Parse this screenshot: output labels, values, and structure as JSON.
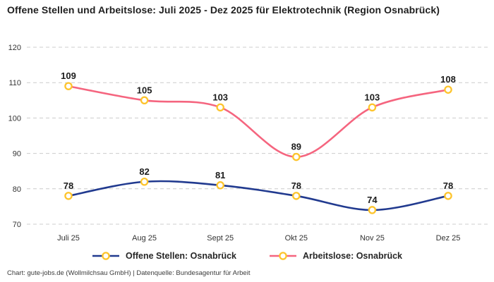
{
  "header": {
    "title": "Offene Stellen und Arbeitslose: Juli 2025 - Dez 2025 für Elektrotechnik (Region Osnabrück)"
  },
  "footer": {
    "credit": "Chart: gute-jobs.de (Wollmilchsau GmbH) | Datenquelle: Bundesagentur für Arbeit"
  },
  "colors": {
    "offene_stellen": "#213a8f",
    "arbeitslose": "#f5657f",
    "marker_ring": "#fdc42c",
    "marker_fill": "#ffffff",
    "grid": "#cccccc",
    "data_label": "#1c1c1c",
    "tick_label": "#333333"
  },
  "chart_data": {
    "type": "line",
    "categories": [
      "Juli 25",
      "Aug 25",
      "Sept 25",
      "Okt 25",
      "Nov 25",
      "Dez 25"
    ],
    "series": [
      {
        "name": "Offene Stellen: Osnabrück",
        "color_key": "offene_stellen",
        "values": [
          78,
          82,
          81,
          78,
          74,
          78
        ]
      },
      {
        "name": "Arbeitslose: Osnabrück",
        "color_key": "arbeitslose",
        "values": [
          109,
          105,
          103,
          89,
          103,
          108
        ]
      }
    ],
    "ylim": [
      70,
      120
    ],
    "yticks": [
      70,
      80,
      90,
      100,
      110,
      120
    ],
    "grid": "horizontal-dashed",
    "legend_position": "bottom",
    "marker": "open-circle",
    "data_labels": true
  }
}
